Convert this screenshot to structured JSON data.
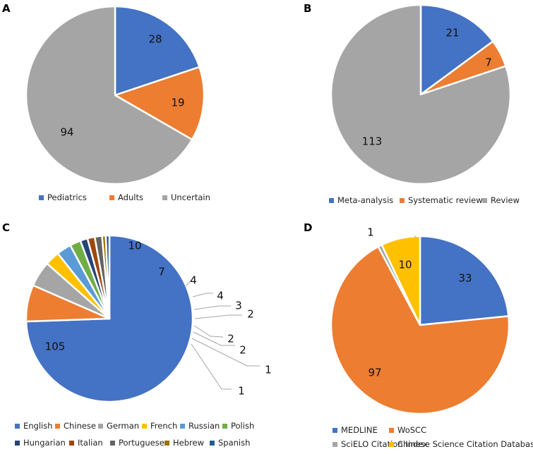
{
  "chart_data": [
    {
      "panel": "A",
      "type": "pie",
      "categories": [
        "Pediatrics",
        "Adults",
        "Uncertain"
      ],
      "values": [
        28,
        19,
        94
      ],
      "colors": [
        "#4472C4",
        "#ED7D31",
        "#A5A5A5"
      ],
      "legend_position": "bottom"
    },
    {
      "panel": "B",
      "type": "pie",
      "categories": [
        "Meta-analysis",
        "Systematic review",
        "Review"
      ],
      "values": [
        21,
        7,
        113
      ],
      "colors": [
        "#4472C4",
        "#ED7D31",
        "#A5A5A5"
      ],
      "legend_position": "bottom"
    },
    {
      "panel": "C",
      "type": "pie",
      "categories": [
        "English",
        "Chinese",
        "German",
        "French",
        "Russian",
        "Polish",
        "Hungarian",
        "Italian",
        "Portuguese",
        "Hebrew",
        "Spanish"
      ],
      "values": [
        105,
        10,
        7,
        4,
        4,
        3,
        2,
        2,
        2,
        1,
        1
      ],
      "colors": [
        "#4472C4",
        "#ED7D31",
        "#A5A5A5",
        "#FFC000",
        "#5B9BD5",
        "#70AD47",
        "#264478",
        "#9E480E",
        "#636363",
        "#997300",
        "#255E91"
      ],
      "legend_position": "bottom"
    },
    {
      "panel": "D",
      "type": "pie",
      "categories": [
        "MEDLINE",
        "WoSCC",
        "SciELO Citation Index",
        "Chinese Science Citation Database"
      ],
      "values": [
        33,
        97,
        1,
        10
      ],
      "colors": [
        "#4472C4",
        "#ED7D31",
        "#A5A5A5",
        "#FFC000"
      ],
      "legend_position": "bottom"
    }
  ]
}
